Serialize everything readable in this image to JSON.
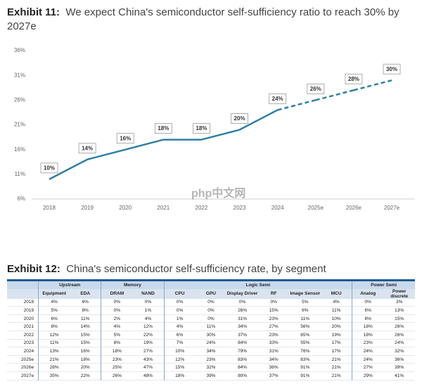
{
  "chart_data": {
    "type": "line",
    "label": "Exhibit 11:",
    "title": "We expect China's semiconductor self-sufficiency ratio to reach 30% by 2027e",
    "categories": [
      "2018",
      "2019",
      "2020",
      "2021",
      "2022",
      "2023",
      "2024",
      "2025e",
      "2026e",
      "2027e"
    ],
    "values": [
      10,
      14,
      16,
      18,
      18,
      20,
      24,
      26,
      28,
      30
    ],
    "value_labels": [
      "10%",
      "14%",
      "16%",
      "18%",
      "18%",
      "20%",
      "24%",
      "26%",
      "28%",
      "30%"
    ],
    "color": "#2f7fa3",
    "ylim": [
      6,
      36
    ],
    "yticks": [
      {
        "value": 6,
        "label": "6%"
      },
      {
        "value": 11,
        "label": "11%"
      },
      {
        "value": 16,
        "label": "16%"
      },
      {
        "value": 21,
        "label": "21%"
      },
      {
        "value": 26,
        "label": "26%"
      },
      {
        "value": 31,
        "label": "31%"
      },
      {
        "value": 36,
        "label": "36%"
      }
    ]
  },
  "table": {
    "label": "Exhibit 12:",
    "title": "China's semiconductor self-sufficiency rate, by segment",
    "groups": [
      {
        "name": "Upstream",
        "columns": [
          "Equipment",
          "EDA"
        ]
      },
      {
        "name": "Memory",
        "columns": [
          "DRAM",
          "NAND"
        ]
      },
      {
        "name": "Logic Semi",
        "columns": [
          "CPU",
          "GPU",
          "Display Driver",
          "RF",
          "Image Sensor",
          "MCU"
        ]
      },
      {
        "name": "Power Semi",
        "columns": [
          "Analog",
          "Power discrete"
        ]
      }
    ],
    "rows": [
      [
        "2018",
        "4%",
        "6%",
        "0%",
        "0%",
        "0%",
        "0%",
        "0%",
        "0%",
        "5%",
        "4%",
        "0%",
        "3%"
      ],
      [
        "2019",
        "5%",
        "8%",
        "0%",
        "1%",
        "0%",
        "0%",
        "26%",
        "15%",
        "6%",
        "11%",
        "6%",
        "13%"
      ],
      [
        "2020",
        "6%",
        "11%",
        "2%",
        "4%",
        "1%",
        "0%",
        "31%",
        "23%",
        "11%",
        "10%",
        "8%",
        "15%"
      ],
      [
        "2021",
        "8%",
        "14%",
        "4%",
        "12%",
        "4%",
        "11%",
        "34%",
        "27%",
        "56%",
        "20%",
        "18%",
        "26%"
      ],
      [
        "2022",
        "12%",
        "15%",
        "5%",
        "22%",
        "6%",
        "30%",
        "37%",
        "23%",
        "65%",
        "19%",
        "18%",
        "26%"
      ],
      [
        "2023",
        "11%",
        "15%",
        "8%",
        "19%",
        "7%",
        "24%",
        "84%",
        "33%",
        "55%",
        "17%",
        "23%",
        "24%"
      ],
      [
        "2024",
        "13%",
        "16%",
        "18%",
        "27%",
        "10%",
        "34%",
        "79%",
        "31%",
        "76%",
        "17%",
        "24%",
        "32%"
      ],
      [
        "2025e",
        "21%",
        "18%",
        "23%",
        "43%",
        "12%",
        "23%",
        "83%",
        "34%",
        "83%",
        "21%",
        "24%",
        "36%"
      ],
      [
        "2026e",
        "28%",
        "20%",
        "25%",
        "47%",
        "15%",
        "32%",
        "84%",
        "36%",
        "91%",
        "21%",
        "27%",
        "39%"
      ],
      [
        "2027e",
        "35%",
        "22%",
        "26%",
        "48%",
        "18%",
        "39%",
        "80%",
        "37%",
        "91%",
        "21%",
        "29%",
        "41%"
      ]
    ]
  },
  "watermark": "php中文网"
}
